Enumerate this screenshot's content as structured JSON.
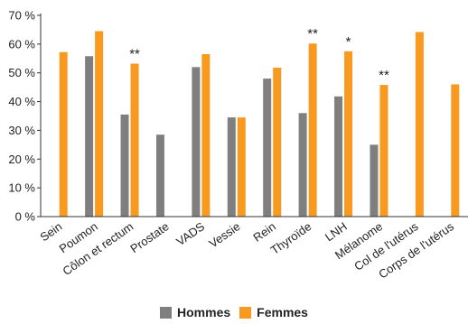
{
  "colors": {
    "hommes": "#7f7f7f",
    "femmes": "#f79a1f",
    "axis": "#333333"
  },
  "chart_data": {
    "type": "bar",
    "ylim": [
      0,
      70
    ],
    "yticks": [
      "0 %",
      "10 %",
      "20 %",
      "30 %",
      "40 %",
      "50 %",
      "60 %",
      "70 %"
    ],
    "ytick_values": [
      0,
      10,
      20,
      30,
      40,
      50,
      60,
      70
    ],
    "grid": false,
    "legend_position": "bottom-center",
    "categories": [
      "Sein",
      "Poumon",
      "Côlon et rectum",
      "Prostate",
      "VADS",
      "Vessie",
      "Rein",
      "Thyroïde",
      "LNH",
      "Mélanome",
      "Col de l'utérus",
      "Corps de l'utérus"
    ],
    "series": [
      {
        "name": "Hommes",
        "values": [
          null,
          55.8,
          35.5,
          28.5,
          52.0,
          34.5,
          48.0,
          36.0,
          41.8,
          25.0,
          null,
          null
        ]
      },
      {
        "name": "Femmes",
        "values": [
          57.2,
          64.5,
          53.2,
          null,
          56.5,
          34.5,
          51.8,
          60.2,
          57.5,
          45.8,
          64.2,
          46.0
        ]
      }
    ],
    "annotations": [
      {
        "category": "Côlon et rectum",
        "text": "**"
      },
      {
        "category": "Thyroïde",
        "text": "**"
      },
      {
        "category": "LNH",
        "text": "*"
      },
      {
        "category": "Mélanome",
        "text": "**"
      }
    ]
  },
  "legend": {
    "hommes": "Hommes",
    "femmes": "Femmes"
  }
}
